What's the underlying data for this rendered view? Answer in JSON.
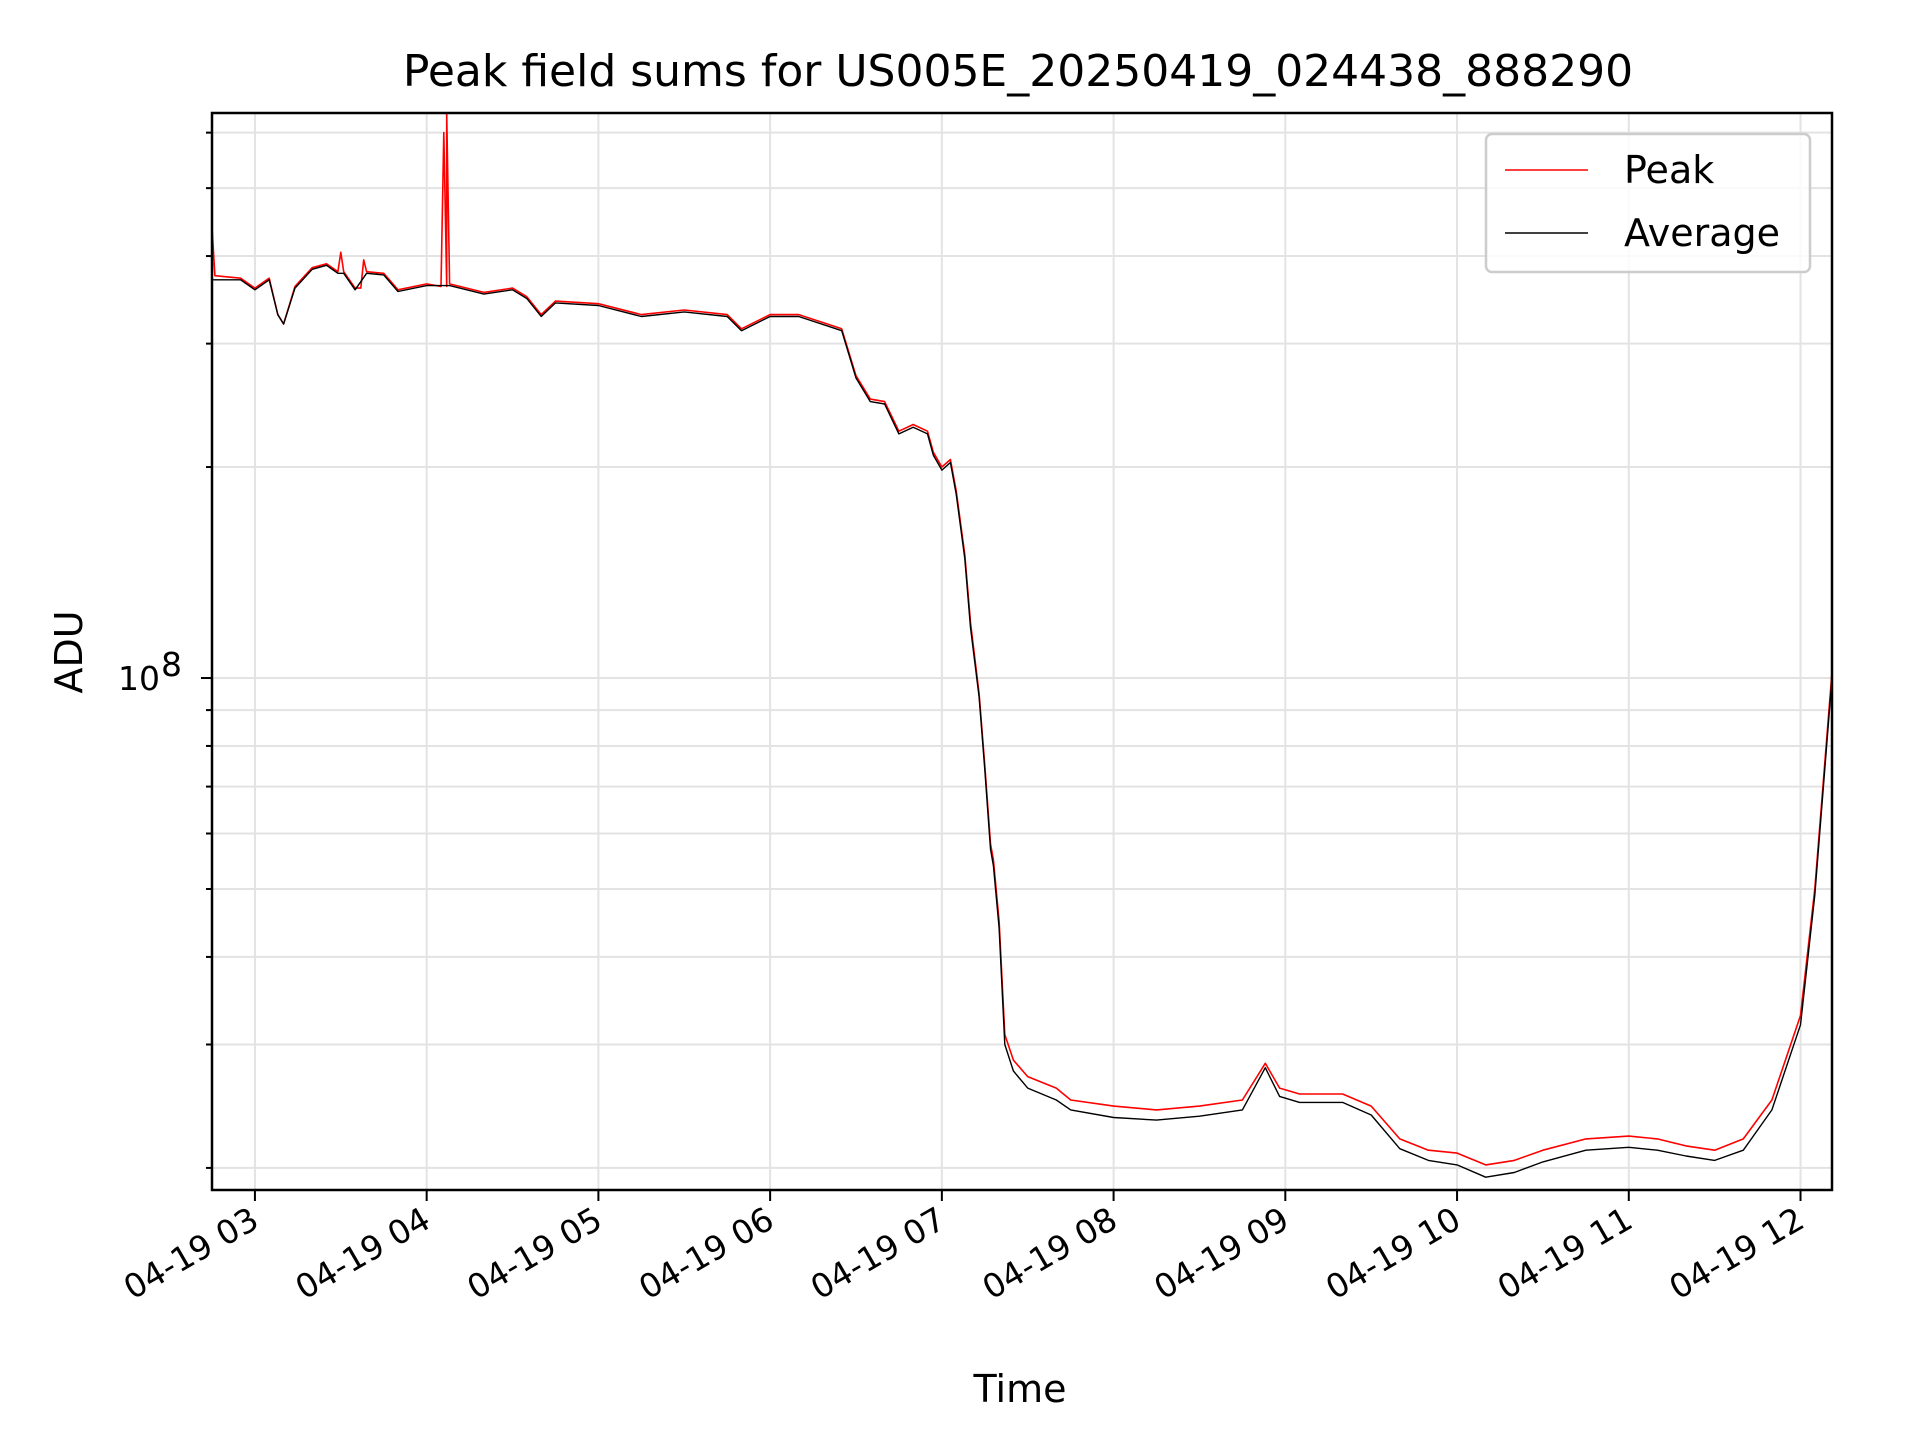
{
  "chart_data": {
    "type": "line",
    "title": "Peak field sums for US005E_20250419_024438_888290",
    "xlabel": "Time",
    "ylabel": "ADU",
    "y_scale": "log",
    "grid": true,
    "legend_position": "top-right",
    "x_range": [
      "04-19 02:45",
      "04-19 12:11"
    ],
    "y_range": [
      18600000.0,
      640000000.0
    ],
    "x_ticks": [
      "04-19 03",
      "04-19 04",
      "04-19 05",
      "04-19 06",
      "04-19 07",
      "04-19 08",
      "04-19 09",
      "04-19 10",
      "04-19 11",
      "04-19 12"
    ],
    "y_major_ticks": [
      {
        "value": 100000000.0,
        "base": "10",
        "exponent": "8"
      }
    ],
    "y_minor_ticks": [
      20000000.0,
      30000000.0,
      40000000.0,
      50000000.0,
      60000000.0,
      70000000.0,
      80000000.0,
      90000000.0,
      200000000.0,
      300000000.0,
      400000000.0,
      500000000.0,
      600000000.0
    ],
    "series": [
      {
        "name": "Peak",
        "color": "#ff0000",
        "points": [
          [
            "04-19 02:45",
            440000000.0
          ],
          [
            "04-19 02:46",
            375000000.0
          ],
          [
            "04-19 02:55",
            372000000.0
          ],
          [
            "04-19 03:00",
            360000000.0
          ],
          [
            "04-19 03:05",
            372000000.0
          ],
          [
            "04-19 03:08",
            330000000.0
          ],
          [
            "04-19 03:10",
            320000000.0
          ],
          [
            "04-19 03:14",
            362000000.0
          ],
          [
            "04-19 03:20",
            385000000.0
          ],
          [
            "04-19 03:25",
            390000000.0
          ],
          [
            "04-19 03:29",
            380000000.0
          ],
          [
            "04-19 03:30",
            405000000.0
          ],
          [
            "04-19 03:31",
            380000000.0
          ],
          [
            "04-19 03:35",
            360000000.0
          ],
          [
            "04-19 03:37",
            360000000.0
          ],
          [
            "04-19 03:38",
            395000000.0
          ],
          [
            "04-19 03:39",
            380000000.0
          ],
          [
            "04-19 03:45",
            378000000.0
          ],
          [
            "04-19 03:50",
            358000000.0
          ],
          [
            "04-19 04:00",
            365000000.0
          ],
          [
            "04-19 04:05",
            362000000.0
          ],
          [
            "04-19 04:06",
            600000000.0
          ],
          [
            "04-19 04:07",
            362000000.0
          ],
          [
            "04-19 04:07",
            640000000.0
          ],
          [
            "04-19 04:08",
            365000000.0
          ],
          [
            "04-19 04:20",
            355000000.0
          ],
          [
            "04-19 04:30",
            360000000.0
          ],
          [
            "04-19 04:35",
            350000000.0
          ],
          [
            "04-19 04:40",
            330000000.0
          ],
          [
            "04-19 04:45",
            345000000.0
          ],
          [
            "04-19 05:00",
            342000000.0
          ],
          [
            "04-19 05:15",
            330000000.0
          ],
          [
            "04-19 05:30",
            335000000.0
          ],
          [
            "04-19 05:45",
            330000000.0
          ],
          [
            "04-19 05:50",
            315000000.0
          ],
          [
            "04-19 06:00",
            330000000.0
          ],
          [
            "04-19 06:10",
            330000000.0
          ],
          [
            "04-19 06:20",
            320000000.0
          ],
          [
            "04-19 06:25",
            315000000.0
          ],
          [
            "04-19 06:30",
            270000000.0
          ],
          [
            "04-19 06:35",
            250000000.0
          ],
          [
            "04-19 06:40",
            248000000.0
          ],
          [
            "04-19 06:45",
            225000000.0
          ],
          [
            "04-19 06:50",
            230000000.0
          ],
          [
            "04-19 06:55",
            225000000.0
          ],
          [
            "04-19 06:57",
            210000000.0
          ],
          [
            "04-19 07:00",
            200000000.0
          ],
          [
            "04-19 07:03",
            205000000.0
          ],
          [
            "04-19 07:05",
            185000000.0
          ],
          [
            "04-19 07:08",
            150000000.0
          ],
          [
            "04-19 07:10",
            120000000.0
          ],
          [
            "04-19 07:13",
            95000000.0
          ],
          [
            "04-19 07:15",
            75000000.0
          ],
          [
            "04-19 07:17",
            58000000.0
          ],
          [
            "04-19 07:18",
            55000000.0
          ],
          [
            "04-19 07:20",
            45000000.0
          ],
          [
            "04-19 07:22",
            31000000.0
          ],
          [
            "04-19 07:25",
            28500000.0
          ],
          [
            "04-19 07:30",
            27000000.0
          ],
          [
            "04-19 07:40",
            26000000.0
          ],
          [
            "04-19 07:45",
            25000000.0
          ],
          [
            "04-19 08:00",
            24500000.0
          ],
          [
            "04-19 08:15",
            24200000.0
          ],
          [
            "04-19 08:30",
            24500000.0
          ],
          [
            "04-19 08:45",
            25000000.0
          ],
          [
            "04-19 08:53",
            28200000.0
          ],
          [
            "04-19 08:58",
            26000000.0
          ],
          [
            "04-19 09:05",
            25500000.0
          ],
          [
            "04-19 09:20",
            25500000.0
          ],
          [
            "04-19 09:30",
            24500000.0
          ],
          [
            "04-19 09:40",
            22000000.0
          ],
          [
            "04-19 09:50",
            21200000.0
          ],
          [
            "04-19 10:00",
            21000000.0
          ],
          [
            "04-19 10:10",
            20200000.0
          ],
          [
            "04-19 10:20",
            20500000.0
          ],
          [
            "04-19 10:30",
            21200000.0
          ],
          [
            "04-19 10:45",
            22000000.0
          ],
          [
            "04-19 11:00",
            22200000.0
          ],
          [
            "04-19 11:10",
            22000000.0
          ],
          [
            "04-19 11:20",
            21500000.0
          ],
          [
            "04-19 11:30",
            21200000.0
          ],
          [
            "04-19 11:40",
            22000000.0
          ],
          [
            "04-19 11:50",
            25000000.0
          ],
          [
            "04-19 12:00",
            33000000.0
          ],
          [
            "04-19 12:05",
            50000000.0
          ],
          [
            "04-19 12:11",
            102000000.0
          ]
        ]
      },
      {
        "name": "Average",
        "color": "#000000",
        "points": [
          [
            "04-19 02:45",
            370000000.0
          ],
          [
            "04-19 02:55",
            370000000.0
          ],
          [
            "04-19 03:00",
            358000000.0
          ],
          [
            "04-19 03:05",
            370000000.0
          ],
          [
            "04-19 03:08",
            330000000.0
          ],
          [
            "04-19 03:10",
            320000000.0
          ],
          [
            "04-19 03:14",
            360000000.0
          ],
          [
            "04-19 03:20",
            383000000.0
          ],
          [
            "04-19 03:25",
            388000000.0
          ],
          [
            "04-19 03:29",
            378000000.0
          ],
          [
            "04-19 03:31",
            378000000.0
          ],
          [
            "04-19 03:35",
            358000000.0
          ],
          [
            "04-19 03:39",
            378000000.0
          ],
          [
            "04-19 03:45",
            376000000.0
          ],
          [
            "04-19 03:50",
            356000000.0
          ],
          [
            "04-19 04:00",
            363000000.0
          ],
          [
            "04-19 04:08",
            363000000.0
          ],
          [
            "04-19 04:20",
            353000000.0
          ],
          [
            "04-19 04:30",
            358000000.0
          ],
          [
            "04-19 04:35",
            348000000.0
          ],
          [
            "04-19 04:40",
            328000000.0
          ],
          [
            "04-19 04:45",
            343000000.0
          ],
          [
            "04-19 05:00",
            340000000.0
          ],
          [
            "04-19 05:15",
            328000000.0
          ],
          [
            "04-19 05:30",
            333000000.0
          ],
          [
            "04-19 05:45",
            328000000.0
          ],
          [
            "04-19 05:50",
            313000000.0
          ],
          [
            "04-19 06:00",
            328000000.0
          ],
          [
            "04-19 06:10",
            328000000.0
          ],
          [
            "04-19 06:20",
            318000000.0
          ],
          [
            "04-19 06:25",
            313000000.0
          ],
          [
            "04-19 06:30",
            268000000.0
          ],
          [
            "04-19 06:35",
            248000000.0
          ],
          [
            "04-19 06:40",
            246000000.0
          ],
          [
            "04-19 06:45",
            223000000.0
          ],
          [
            "04-19 06:50",
            228000000.0
          ],
          [
            "04-19 06:55",
            223000000.0
          ],
          [
            "04-19 06:57",
            208000000.0
          ],
          [
            "04-19 07:00",
            198000000.0
          ],
          [
            "04-19 07:03",
            203000000.0
          ],
          [
            "04-19 07:05",
            183000000.0
          ],
          [
            "04-19 07:08",
            148000000.0
          ],
          [
            "04-19 07:10",
            118000000.0
          ],
          [
            "04-19 07:13",
            94000000.0
          ],
          [
            "04-19 07:15",
            74000000.0
          ],
          [
            "04-19 07:17",
            57000000.0
          ],
          [
            "04-19 07:18",
            54000000.0
          ],
          [
            "04-19 07:20",
            44000000.0
          ],
          [
            "04-19 07:22",
            30000000.0
          ],
          [
            "04-19 07:25",
            27500000.0
          ],
          [
            "04-19 07:30",
            26000000.0
          ],
          [
            "04-19 07:40",
            25000000.0
          ],
          [
            "04-19 07:45",
            24200000.0
          ],
          [
            "04-19 08:00",
            23600000.0
          ],
          [
            "04-19 08:15",
            23400000.0
          ],
          [
            "04-19 08:30",
            23700000.0
          ],
          [
            "04-19 08:45",
            24200000.0
          ],
          [
            "04-19 08:53",
            27800000.0
          ],
          [
            "04-19 08:58",
            25300000.0
          ],
          [
            "04-19 09:05",
            24800000.0
          ],
          [
            "04-19 09:20",
            24800000.0
          ],
          [
            "04-19 09:30",
            23800000.0
          ],
          [
            "04-19 09:40",
            21300000.0
          ],
          [
            "04-19 09:50",
            20500000.0
          ],
          [
            "04-19 10:00",
            20200000.0
          ],
          [
            "04-19 10:10",
            19400000.0
          ],
          [
            "04-19 10:20",
            19700000.0
          ],
          [
            "04-19 10:30",
            20400000.0
          ],
          [
            "04-19 10:45",
            21200000.0
          ],
          [
            "04-19 11:00",
            21400000.0
          ],
          [
            "04-19 11:10",
            21200000.0
          ],
          [
            "04-19 11:20",
            20800000.0
          ],
          [
            "04-19 11:30",
            20500000.0
          ],
          [
            "04-19 11:40",
            21200000.0
          ],
          [
            "04-19 11:50",
            24200000.0
          ],
          [
            "04-19 12:00",
            32000000.0
          ],
          [
            "04-19 12:05",
            49000000.0
          ],
          [
            "04-19 12:11",
            100000000.0
          ]
        ]
      }
    ]
  }
}
